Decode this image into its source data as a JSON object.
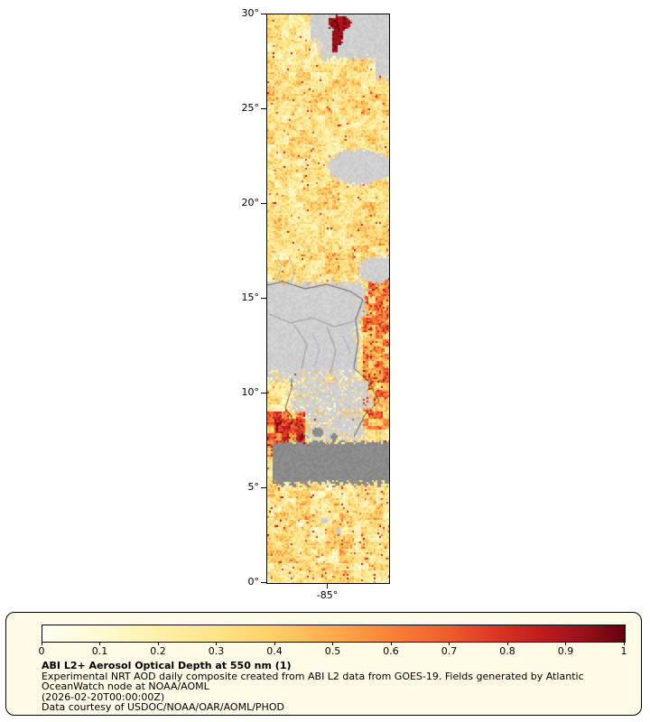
{
  "figure": {
    "axes": {
      "y_ticks": [
        "30°",
        "25°",
        "20°",
        "15°",
        "10°",
        "5°",
        "0°"
      ],
      "x_ticks": [
        "-85°"
      ]
    },
    "legend": {
      "colorbar_ticks": [
        "0",
        "0.1",
        "0.2",
        "0.3",
        "0.4",
        "0.5",
        "0.6",
        "0.7",
        "0.8",
        "0.9",
        "1"
      ],
      "title": "ABI L2+ Aerosol Optical Depth at 550 nm (1)",
      "description": "Experimental NRT AOD daily composite created from ABI L2 data from GOES-19. Fields generated by Atlantic OceanWatch node at NOAA/AOML",
      "timestamp": "(2026-02-20T00:00:00Z)",
      "courtesy": "Data courtesy of USDOC/NOAA/OAR/AOML/PHOD",
      "panel_bg": "#fffbe6"
    }
  },
  "chart_data": {
    "type": "heatmap",
    "title": "ABI L2+ Aerosol Optical Depth at 550 nm (1)",
    "subtitle": "Experimental NRT AOD daily composite created from ABI L2 data from GOES-19. Fields generated by Atlantic OceanWatch node at NOAA/AOML",
    "timestamp": "(2026-02-20T00:00:00Z)",
    "source": "Data courtesy of USDOC/NOAA/OAR/AOML/PHOD",
    "x_tick_labels": [
      "-85°"
    ],
    "y_tick_labels": [
      "30°",
      "25°",
      "20°",
      "15°",
      "10°",
      "5°",
      "0°"
    ],
    "y_axis_range": [
      0,
      30
    ],
    "value_range": [
      0,
      1
    ],
    "colorbar": {
      "orientation": "horizontal",
      "position": "bottom",
      "ticks": [
        0,
        0.1,
        0.2,
        0.3,
        0.4,
        0.5,
        0.6,
        0.7,
        0.8,
        0.9,
        1
      ],
      "colormap": [
        {
          "v": 0.0,
          "c": "#fffff2"
        },
        {
          "v": 0.08,
          "c": "#fffbd9"
        },
        {
          "v": 0.18,
          "c": "#fef3b0"
        },
        {
          "v": 0.3,
          "c": "#fee388"
        },
        {
          "v": 0.4,
          "c": "#fecf66"
        },
        {
          "v": 0.5,
          "c": "#fdab49"
        },
        {
          "v": 0.6,
          "c": "#fc8038"
        },
        {
          "v": 0.7,
          "c": "#f05a2d"
        },
        {
          "v": 0.78,
          "c": "#de3423"
        },
        {
          "v": 0.86,
          "c": "#c01a1c"
        },
        {
          "v": 0.93,
          "c": "#98101b"
        },
        {
          "v": 1.0,
          "c": "#67000d"
        }
      ]
    },
    "legend_panel_bg": "#fffbe6",
    "no_data_colors": {
      "cloud_land_gray": "#d2d2d2",
      "dark_gray": "#8d8d8d"
    }
  }
}
